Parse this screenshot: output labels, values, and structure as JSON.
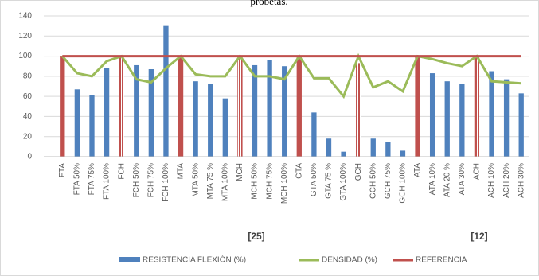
{
  "chart_data": {
    "type": "bar-line",
    "title": "probetas.",
    "categories": [
      "FTA",
      "FTA 50%",
      "FTA 75%",
      "FTA 100%",
      "FCH",
      "FCH 50%",
      "FCH 75%",
      "FCH 100%",
      "MTA",
      "MTA 50%",
      "MTA 75 %",
      "MTA 100%",
      "MCH",
      "MCH 50%",
      "MCH 75%",
      "MCH 100%",
      "GTA",
      "GTA 50%",
      "GTA 75 %",
      "GTA 100%",
      "GCH",
      "GCH 50%",
      "GCH 75%",
      "GCH 100%",
      "ATA",
      "ATA 10%",
      "ATA 20 %",
      "ATA 30%",
      "ACH",
      "ACH 10%",
      "ACH 20%",
      "ACH 30%"
    ],
    "series": [
      {
        "name": "RESISTENCIA FLEXIÓN (%)",
        "kind": "bar",
        "color": "#4f81bd",
        "values": [
          100,
          67,
          61,
          88,
          100,
          91,
          87,
          130,
          100,
          75,
          72,
          58,
          100,
          91,
          96,
          90,
          100,
          44,
          18,
          5,
          93,
          18,
          15,
          6,
          100,
          83,
          75,
          72,
          100,
          85,
          77,
          63
        ],
        "colors": [
          "#c0504d",
          "#4f81bd",
          "#4f81bd",
          "#4f81bd",
          "#c0504d",
          "#4f81bd",
          "#4f81bd",
          "#4f81bd",
          "#c0504d",
          "#4f81bd",
          "#4f81bd",
          "#4f81bd",
          "#c0504d",
          "#4f81bd",
          "#4f81bd",
          "#4f81bd",
          "#c0504d",
          "#4f81bd",
          "#4f81bd",
          "#4f81bd",
          "#c0504d",
          "#4f81bd",
          "#4f81bd",
          "#4f81bd",
          "#c0504d",
          "#4f81bd",
          "#4f81bd",
          "#4f81bd",
          "#c0504d",
          "#4f81bd",
          "#4f81bd",
          "#4f81bd"
        ],
        "hatched": [
          4,
          12,
          20,
          28
        ]
      },
      {
        "name": "DENSIDAD (%)",
        "kind": "line",
        "color": "#9bbb59",
        "values": [
          100,
          83,
          80,
          95,
          100,
          77,
          74,
          88,
          100,
          82,
          80,
          80,
          100,
          80,
          80,
          77,
          100,
          78,
          78,
          60,
          100,
          69,
          75,
          65,
          100,
          97,
          93,
          90,
          100,
          75,
          74,
          73
        ]
      },
      {
        "name": "REFERENCIA",
        "kind": "line",
        "color": "#c0504d",
        "values": [
          100,
          100,
          100,
          100,
          100,
          100,
          100,
          100,
          100,
          100,
          100,
          100,
          100,
          100,
          100,
          100,
          100,
          100,
          100,
          100,
          100,
          100,
          100,
          100,
          100,
          100,
          100,
          100,
          100,
          100,
          100,
          100
        ]
      }
    ],
    "annotations": [
      "[25]",
      "[12]"
    ],
    "ylim": [
      0,
      140
    ],
    "yticks": [
      0,
      20,
      40,
      60,
      80,
      100,
      120,
      140
    ],
    "grid": true
  }
}
